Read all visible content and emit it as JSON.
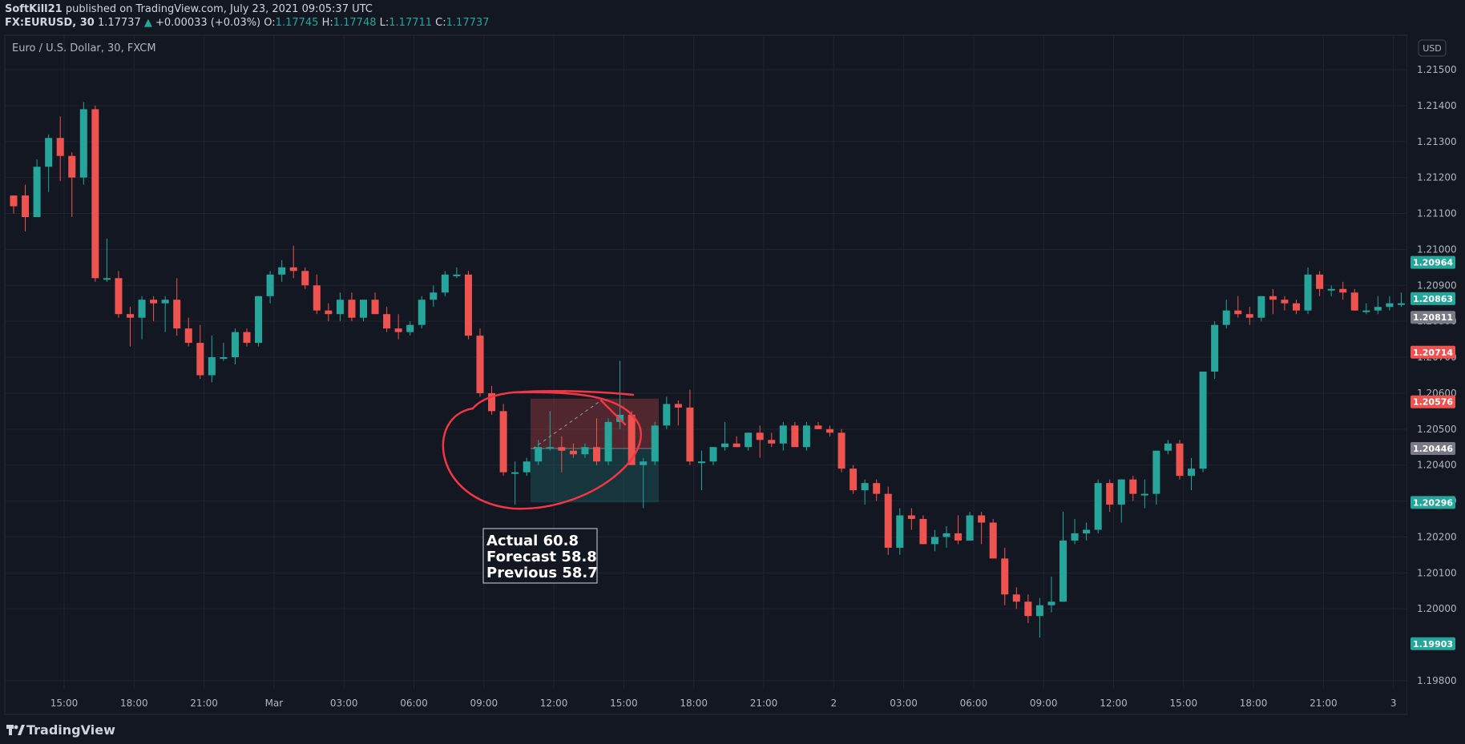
{
  "header": {
    "publisher": "SoftKill21",
    "published_text": "published on TradingView.com, July 23, 2021 09:05:37 UTC",
    "symbol": "FX:EURUSD, 30",
    "last": "1.17737",
    "arrow": "▲",
    "change": "+0.00033 (+0.03%)",
    "o_label": "O:",
    "o_val": "1.17745",
    "h_label": "H:",
    "h_val": "1.17748",
    "l_label": "L:",
    "l_val": "1.17711",
    "c_label": "C:",
    "c_val": "1.17737"
  },
  "legend_title": "Euro / U.S. Dollar, 30, FXCM",
  "currency": "USD",
  "brand": "TradingView",
  "annotation": {
    "lines": [
      "Actual 60.8",
      "Forecast 58.8",
      "Previous 58.7"
    ]
  },
  "colors": {
    "up": "#26a69a",
    "down": "#ef5350",
    "background": "#131722",
    "grid": "#1f2430",
    "text": "#b2b5be",
    "gray_label": "#787b86",
    "circle": "#f23645"
  },
  "chart_data": {
    "type": "candlestick",
    "ylim": [
      1.1975,
      1.2155
    ],
    "y_ticks": [
      "1.19800",
      "1.20000",
      "1.20100",
      "1.20200",
      "1.20300",
      "1.20400",
      "1.20500",
      "1.20600",
      "1.20700",
      "1.20800",
      "1.20900",
      "1.21000",
      "1.21100",
      "1.21200",
      "1.21300",
      "1.21400",
      "1.21500"
    ],
    "x_ticks": [
      "15:00",
      "18:00",
      "21:00",
      "Mar",
      "03:00",
      "06:00",
      "09:00",
      "12:00",
      "15:00",
      "18:00",
      "21:00",
      "2",
      "03:00",
      "06:00",
      "09:00",
      "12:00",
      "15:00",
      "18:00",
      "21:00",
      "3"
    ],
    "price_labels": [
      {
        "value": "1.20964",
        "color": "#26a69a"
      },
      {
        "value": "1.20863",
        "color": "#26a69a"
      },
      {
        "value": "1.20811",
        "color": "#787b86"
      },
      {
        "value": "1.20714",
        "color": "#ef5350"
      },
      {
        "value": "1.20576",
        "color": "#ef5350"
      },
      {
        "value": "1.20446",
        "color": "#787b86"
      },
      {
        "value": "1.20296",
        "color": "#26a69a"
      },
      {
        "value": "1.19903",
        "color": "#26a69a"
      }
    ],
    "position_box": {
      "entry": 1.20446,
      "target": 1.20576,
      "stop": 1.20296,
      "x_start": "11:00",
      "x_end": "16:30"
    },
    "candles": [
      [
        1.2115,
        1.2115,
        1.211,
        1.2112
      ],
      [
        1.2115,
        1.2118,
        1.2105,
        1.2109
      ],
      [
        1.2109,
        1.2125,
        1.2109,
        1.2123
      ],
      [
        1.2123,
        1.2132,
        1.2116,
        1.2131
      ],
      [
        1.2131,
        1.2137,
        1.2119,
        1.2126
      ],
      [
        1.2126,
        1.2127,
        1.2109,
        1.212
      ],
      [
        1.212,
        1.2141,
        1.2118,
        1.2139
      ],
      [
        1.2139,
        1.214,
        1.2091,
        1.2092
      ],
      [
        1.2092,
        1.2103,
        1.2091,
        1.2092
      ],
      [
        1.2092,
        1.2094,
        1.2081,
        1.2082
      ],
      [
        1.2082,
        1.2084,
        1.2073,
        1.2081
      ],
      [
        1.2081,
        1.2087,
        1.2075,
        1.2086
      ],
      [
        1.2086,
        1.2087,
        1.208,
        1.2085
      ],
      [
        1.2085,
        1.2087,
        1.2077,
        1.2086
      ],
      [
        1.2086,
        1.2092,
        1.2076,
        1.2078
      ],
      [
        1.2078,
        1.2081,
        1.2073,
        1.2074
      ],
      [
        1.2074,
        1.2079,
        1.2064,
        1.2065
      ],
      [
        1.2065,
        1.2076,
        1.2063,
        1.207
      ],
      [
        1.207,
        1.2074,
        1.2069,
        1.207
      ],
      [
        1.207,
        1.2078,
        1.2068,
        1.2077
      ],
      [
        1.2077,
        1.2078,
        1.2073,
        1.2074
      ],
      [
        1.2074,
        1.2087,
        1.2073,
        1.2087
      ],
      [
        1.2087,
        1.2094,
        1.2085,
        1.2093
      ],
      [
        1.2093,
        1.2097,
        1.2091,
        1.2095
      ],
      [
        1.2095,
        1.2101,
        1.2092,
        1.2094
      ],
      [
        1.2094,
        1.2095,
        1.2089,
        1.209
      ],
      [
        1.209,
        1.2093,
        1.2082,
        1.2083
      ],
      [
        1.2083,
        1.2085,
        1.208,
        1.2082
      ],
      [
        1.2082,
        1.2088,
        1.208,
        1.2086
      ],
      [
        1.2086,
        1.2088,
        1.208,
        1.2081
      ],
      [
        1.2081,
        1.2086,
        1.208,
        1.2086
      ],
      [
        1.2086,
        1.2088,
        1.2082,
        1.2082
      ],
      [
        1.2082,
        1.2084,
        1.2077,
        1.2078
      ],
      [
        1.2078,
        1.2082,
        1.2075,
        1.2077
      ],
      [
        1.2077,
        1.208,
        1.2076,
        1.2079
      ],
      [
        1.2079,
        1.2087,
        1.2078,
        1.2086
      ],
      [
        1.2086,
        1.209,
        1.2084,
        1.2088
      ],
      [
        1.2088,
        1.2094,
        1.2087,
        1.2093
      ],
      [
        1.2093,
        1.2095,
        1.2092,
        1.2093
      ],
      [
        1.2093,
        1.2094,
        1.2075,
        1.2076
      ],
      [
        1.2076,
        1.2078,
        1.2059,
        1.206
      ],
      [
        1.206,
        1.2062,
        1.2054,
        1.2055
      ],
      [
        1.2055,
        1.2057,
        1.2037,
        1.2038
      ],
      [
        1.2038,
        1.2041,
        1.2029,
        1.2038
      ],
      [
        1.2038,
        1.2042,
        1.2037,
        1.2041
      ],
      [
        1.2041,
        1.2047,
        1.204,
        1.2045
      ],
      [
        1.2045,
        1.2055,
        1.2044,
        1.2045
      ],
      [
        1.2045,
        1.2048,
        1.2038,
        1.2044
      ],
      [
        1.2044,
        1.2046,
        1.2042,
        1.2043
      ],
      [
        1.2043,
        1.2046,
        1.2042,
        1.2045
      ],
      [
        1.2045,
        1.2053,
        1.204,
        1.2041
      ],
      [
        1.2041,
        1.2053,
        1.204,
        1.2052
      ],
      [
        1.2052,
        1.2069,
        1.205,
        1.2054
      ],
      [
        1.2054,
        1.2055,
        1.204,
        1.204
      ],
      [
        1.204,
        1.2042,
        1.2028,
        1.2041
      ],
      [
        1.2041,
        1.2052,
        1.204,
        1.2051
      ],
      [
        1.2051,
        1.2059,
        1.205,
        1.2057
      ],
      [
        1.2057,
        1.2058,
        1.2051,
        1.2056
      ],
      [
        1.2056,
        1.2061,
        1.204,
        1.2041
      ],
      [
        1.2041,
        1.2044,
        1.2033,
        1.2041
      ],
      [
        1.2041,
        1.2045,
        1.204,
        1.2045
      ],
      [
        1.2045,
        1.2052,
        1.2044,
        1.2046
      ],
      [
        1.2046,
        1.2048,
        1.2045,
        1.2045
      ],
      [
        1.2045,
        1.2049,
        1.2044,
        1.2049
      ],
      [
        1.2049,
        1.2051,
        1.2042,
        1.2047
      ],
      [
        1.2047,
        1.2049,
        1.2045,
        1.2046
      ],
      [
        1.2046,
        1.2052,
        1.2044,
        1.2051
      ],
      [
        1.2051,
        1.2052,
        1.2045,
        1.2045
      ],
      [
        1.2045,
        1.2052,
        1.2044,
        1.2051
      ],
      [
        1.2051,
        1.2052,
        1.205,
        1.205
      ],
      [
        1.205,
        1.2051,
        1.2048,
        1.2049
      ],
      [
        1.2049,
        1.205,
        1.2038,
        1.2039
      ],
      [
        1.2039,
        1.204,
        1.2032,
        1.2033
      ],
      [
        1.2033,
        1.2036,
        1.2029,
        1.2035
      ],
      [
        1.2035,
        1.2036,
        1.203,
        1.2032
      ],
      [
        1.2032,
        1.2034,
        1.2015,
        1.2017
      ],
      [
        1.2017,
        1.2028,
        1.2015,
        1.2026
      ],
      [
        1.2026,
        1.2028,
        1.2022,
        1.2025
      ],
      [
        1.2025,
        1.2026,
        1.2018,
        1.2018
      ],
      [
        1.2018,
        1.2022,
        1.2016,
        1.202
      ],
      [
        1.202,
        1.2023,
        1.2017,
        1.2021
      ],
      [
        1.2021,
        1.2026,
        1.2018,
        1.2019
      ],
      [
        1.2019,
        1.2027,
        1.2019,
        1.2026
      ],
      [
        1.2026,
        1.2027,
        1.2018,
        1.2024
      ],
      [
        1.2024,
        1.2025,
        1.2014,
        1.2014
      ],
      [
        1.2014,
        1.2017,
        1.2001,
        1.2004
      ],
      [
        1.2004,
        1.2006,
        1.2,
        1.2002
      ],
      [
        1.2002,
        1.2004,
        1.1996,
        1.1998
      ],
      [
        1.1998,
        1.2003,
        1.1992,
        1.2001
      ],
      [
        1.2001,
        1.2009,
        1.1999,
        1.2002
      ],
      [
        1.2002,
        1.2027,
        1.2002,
        1.2019
      ],
      [
        1.2019,
        1.2025,
        1.2018,
        1.2021
      ],
      [
        1.2021,
        1.2024,
        1.2019,
        1.2022
      ],
      [
        1.2022,
        1.2036,
        1.2021,
        1.2035
      ],
      [
        1.2035,
        1.2036,
        1.2027,
        1.2029
      ],
      [
        1.2029,
        1.2036,
        1.2024,
        1.2036
      ],
      [
        1.2036,
        1.2037,
        1.203,
        1.2032
      ],
      [
        1.2032,
        1.2036,
        1.2028,
        1.2032
      ],
      [
        1.2032,
        1.2044,
        1.2029,
        1.2044
      ],
      [
        1.2044,
        1.2047,
        1.2043,
        1.2046
      ],
      [
        1.2046,
        1.2047,
        1.2036,
        1.2037
      ],
      [
        1.2037,
        1.2042,
        1.2033,
        1.2039
      ],
      [
        1.2039,
        1.2066,
        1.2038,
        1.2066
      ],
      [
        1.2066,
        1.208,
        1.2064,
        1.2079
      ],
      [
        1.2079,
        1.2086,
        1.2078,
        1.2083
      ],
      [
        1.2083,
        1.2087,
        1.2081,
        1.2082
      ],
      [
        1.2082,
        1.2084,
        1.2079,
        1.2081
      ],
      [
        1.2081,
        1.2087,
        1.208,
        1.2087
      ],
      [
        1.2087,
        1.2089,
        1.2082,
        1.2086
      ],
      [
        1.2086,
        1.2087,
        1.2083,
        1.2085
      ],
      [
        1.2085,
        1.2086,
        1.2082,
        1.2083
      ],
      [
        1.2083,
        1.2095,
        1.2082,
        1.2093
      ],
      [
        1.2093,
        1.2094,
        1.2087,
        1.2089
      ],
      [
        1.2089,
        1.209,
        1.2087,
        1.2089
      ],
      [
        1.2089,
        1.2091,
        1.2086,
        1.2088
      ],
      [
        1.2088,
        1.2089,
        1.2083,
        1.2083
      ],
      [
        1.2083,
        1.2085,
        1.2082,
        1.2083
      ],
      [
        1.2083,
        1.2087,
        1.2082,
        1.2084
      ],
      [
        1.2084,
        1.2087,
        1.2083,
        1.2085
      ],
      [
        1.2085,
        1.2088,
        1.2084,
        1.2085
      ],
      [
        1.2085,
        1.209,
        1.2085,
        1.2086
      ]
    ]
  }
}
